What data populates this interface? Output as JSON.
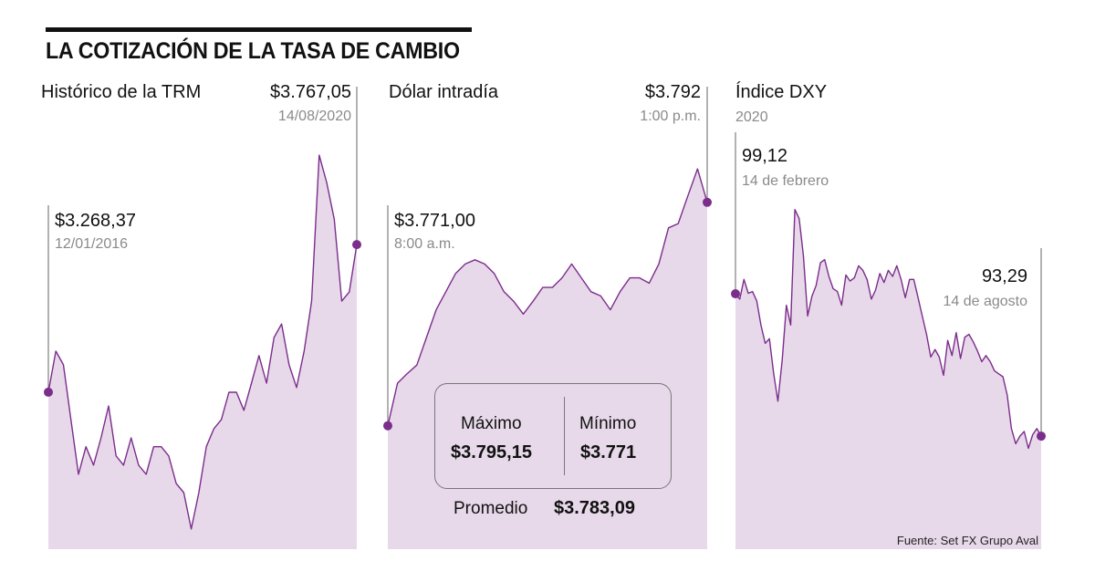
{
  "title": "LA COTIZACIÓN DE LA TASA DE CAMBIO",
  "colors": {
    "line": "#7b2d8b",
    "fill": "#e8d9ea",
    "marker": "#7b2d8b",
    "reference_line": "#666666"
  },
  "chart_data": [
    {
      "type": "area",
      "title": "Histórico de la TRM",
      "start_label": {
        "value": "$3.268,37",
        "date": "12/01/2016"
      },
      "end_label": {
        "value": "$3.767,05",
        "date": "14/08/2020"
      },
      "ylim": [
        2738,
        4316
      ],
      "values": [
        3268.37,
        3407,
        3361,
        3176,
        2991,
        3084,
        3022,
        3114,
        3222,
        3053,
        3022,
        3114,
        3022,
        2991,
        3084,
        3084,
        3053,
        2960,
        2929,
        2806,
        2929,
        3084,
        3145,
        3176,
        3268,
        3268,
        3207,
        3299,
        3392,
        3299,
        3453,
        3499,
        3361,
        3284,
        3407,
        3576,
        4069,
        3977,
        3853,
        3576,
        3607,
        3767.05
      ]
    },
    {
      "type": "area",
      "title": "Dólar intradía",
      "start_label": {
        "value": "$3.771,00",
        "date": "8:00 a.m."
      },
      "end_label": {
        "value": "$3.792",
        "date": "1:00 p.m."
      },
      "ylim": [
        3759.4,
        3803.3
      ],
      "values": [
        3771.0,
        3775.0,
        3775.9,
        3776.7,
        3779.3,
        3781.9,
        3783.6,
        3785.3,
        3786.2,
        3786.6,
        3786.2,
        3785.3,
        3783.6,
        3782.7,
        3781.5,
        3782.7,
        3784.0,
        3784.0,
        3784.9,
        3786.2,
        3784.9,
        3783.6,
        3783.2,
        3781.9,
        3783.6,
        3784.9,
        3784.9,
        3784.4,
        3786.2,
        3789.6,
        3790.0,
        3792.6,
        3795.15,
        3792.0
      ],
      "stats": {
        "max_label": "Máximo",
        "max_value": "$3.795,15",
        "min_label": "Mínimo",
        "min_value": "$3.771",
        "avg_label": "Promedio",
        "avg_value": "$3.783,09"
      }
    },
    {
      "type": "area",
      "title": "Índice DXY",
      "subtitle": "2020",
      "start_label": {
        "value": "99,12",
        "date": "14 de febrero"
      },
      "end_label": {
        "value": "93,29",
        "date": "14 de agosto"
      },
      "ylim": [
        88.66,
        107.79
      ],
      "values": [
        99.12,
        98.9,
        99.71,
        99.14,
        99.21,
        98.83,
        97.84,
        97.09,
        97.28,
        95.84,
        94.72,
        96.4,
        98.65,
        97.84,
        102.57,
        102.2,
        100.7,
        98.21,
        99.02,
        99.46,
        100.39,
        100.52,
        99.83,
        99.33,
        99.21,
        98.65,
        99.89,
        99.64,
        99.77,
        100.27,
        100.08,
        99.71,
        98.9,
        99.27,
        99.95,
        99.58,
        100.08,
        99.83,
        100.27,
        99.71,
        98.96,
        99.71,
        99.71,
        98.96,
        98.21,
        97.46,
        96.53,
        96.84,
        96.53,
        95.78,
        97.21,
        96.59,
        97.53,
        96.47,
        97.34,
        97.46,
        97.15,
        96.78,
        96.34,
        96.59,
        96.34,
        95.97,
        95.84,
        95.72,
        94.97,
        93.6,
        92.98,
        93.29,
        93.48,
        92.79,
        93.35,
        93.6,
        93.29
      ]
    }
  ],
  "source": "Fuente: Set FX Grupo Aval"
}
